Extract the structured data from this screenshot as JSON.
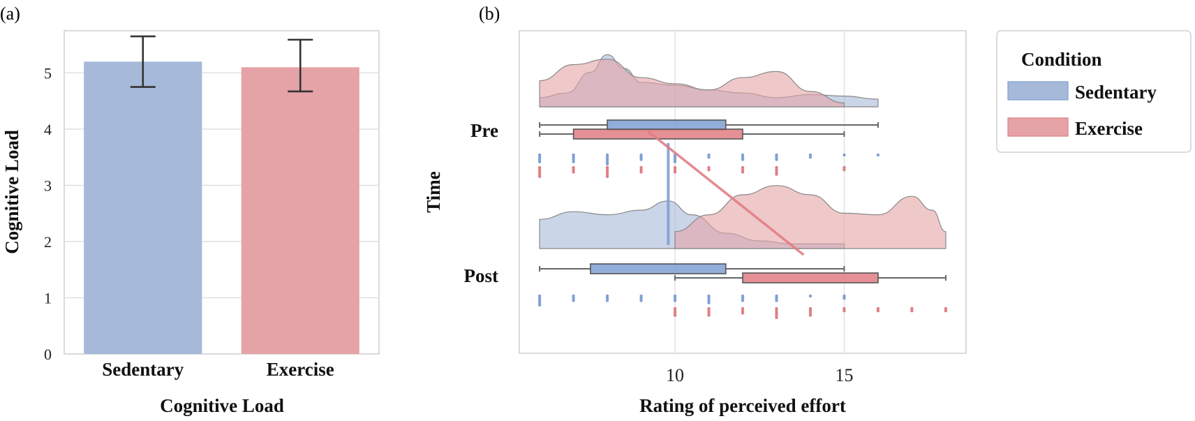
{
  "chart_data": [
    {
      "panel": "(a)",
      "type": "bar",
      "categories": [
        "Sedentary",
        "Exercise"
      ],
      "values": [
        5.2,
        5.1
      ],
      "error": [
        [
          4.75,
          5.65
        ],
        [
          4.67,
          5.59
        ]
      ],
      "colors": [
        "#a6b9d9",
        "#e5a3a7"
      ],
      "title": "",
      "xlabel": "Cognitive Load",
      "ylabel": "Cognitive Load",
      "ylim": [
        0,
        5.75
      ],
      "yticks": [
        0,
        1,
        2,
        3,
        4,
        5
      ],
      "grid": true
    },
    {
      "panel": "(b)",
      "type": "raincloud",
      "categories": [
        "Pre",
        "Post"
      ],
      "xlabel": "Rating of perceived effort",
      "ylabel": "Time",
      "xlim": [
        5.4,
        18.6
      ],
      "xticks": [
        10,
        15
      ],
      "grid": true,
      "legend": {
        "title": "Condition",
        "position": "outside-right"
      },
      "series": [
        {
          "name": "Sedentary",
          "color": "#a6b9d9",
          "edge": "#7f9fd3",
          "boxes": [
            {
              "time": "Pre",
              "whisker_low": 6,
              "q1": 8,
              "median": 9.8,
              "q3": 11.5,
              "whisker_high": 16
            },
            {
              "time": "Post",
              "whisker_low": 6,
              "q1": 7.5,
              "median": 9.8,
              "q3": 11.5,
              "whisker_high": 15
            }
          ],
          "mean_line": [
            9.8,
            9.8
          ],
          "density": [
            {
              "time": "Pre",
              "range": [
                6,
                16
              ],
              "points": [
                [
                  6,
                  0.12
                ],
                [
                  6.8,
                  0.18
                ],
                [
                  7.5,
                  0.45
                ],
                [
                  8,
                  0.68
                ],
                [
                  8.5,
                  0.5
                ],
                [
                  9,
                  0.32
                ],
                [
                  10,
                  0.28
                ],
                [
                  11,
                  0.22
                ],
                [
                  12,
                  0.18
                ],
                [
                  13,
                  0.12
                ],
                [
                  14,
                  0.16
                ],
                [
                  15,
                  0.14
                ],
                [
                  16,
                  0.1
                ]
              ]
            },
            {
              "time": "Post",
              "range": [
                6,
                15
              ],
              "points": [
                [
                  6,
                  0.38
                ],
                [
                  7,
                  0.48
                ],
                [
                  8,
                  0.44
                ],
                [
                  9,
                  0.5
                ],
                [
                  9.8,
                  0.62
                ],
                [
                  10.5,
                  0.44
                ],
                [
                  11.5,
                  0.2
                ],
                [
                  12.5,
                  0.1
                ],
                [
                  13.5,
                  0.06
                ],
                [
                  15,
                  0.06
                ]
              ]
            }
          ],
          "points_pre": [
            6,
            6,
            6,
            6,
            7,
            7,
            7,
            7,
            8,
            8,
            8,
            8,
            8,
            9,
            9,
            9,
            10,
            10,
            10,
            10,
            11,
            11,
            12,
            12,
            12,
            13,
            13,
            13,
            14,
            14,
            15,
            16
          ],
          "points_post": [
            6,
            6,
            6,
            6,
            6,
            7,
            7,
            7,
            8,
            8,
            8,
            9,
            9,
            9,
            10,
            10,
            10,
            11,
            11,
            11,
            11,
            12,
            12,
            12,
            13,
            13,
            13,
            14,
            15,
            15
          ]
        },
        {
          "name": "Exercise",
          "color": "#e5a3a7",
          "edge": "#e17d83",
          "boxes": [
            {
              "time": "Pre",
              "whisker_low": 6,
              "q1": 7,
              "median": 9,
              "q3": 12,
              "whisker_high": 15
            },
            {
              "time": "Post",
              "whisker_low": 10,
              "q1": 12,
              "median": 13.8,
              "q3": 16,
              "whisker_high": 18
            }
          ],
          "mean_line": [
            9.2,
            13.8
          ],
          "density": [
            {
              "time": "Pre",
              "range": [
                6,
                15
              ],
              "points": [
                [
                  6,
                  0.34
                ],
                [
                  7,
                  0.55
                ],
                [
                  8,
                  0.62
                ],
                [
                  9,
                  0.38
                ],
                [
                  10,
                  0.3
                ],
                [
                  11,
                  0.22
                ],
                [
                  12,
                  0.38
                ],
                [
                  13,
                  0.46
                ],
                [
                  14,
                  0.2
                ],
                [
                  15,
                  0.05
                ]
              ]
            },
            {
              "time": "Post",
              "range": [
                10,
                18
              ],
              "points": [
                [
                  10,
                  0.22
                ],
                [
                  11,
                  0.44
                ],
                [
                  12,
                  0.7
                ],
                [
                  13,
                  0.82
                ],
                [
                  14,
                  0.7
                ],
                [
                  15,
                  0.46
                ],
                [
                  16,
                  0.44
                ],
                [
                  17,
                  0.68
                ],
                [
                  17.6,
                  0.5
                ],
                [
                  18,
                  0.22
                ]
              ]
            }
          ],
          "points_pre": [
            6,
            6,
            6,
            6,
            6,
            7,
            7,
            7,
            8,
            8,
            8,
            8,
            8,
            9,
            9,
            9,
            10,
            10,
            10,
            11,
            11,
            12,
            12,
            12,
            13,
            13,
            13,
            13,
            15,
            15
          ],
          "points_post": [
            10,
            10,
            10,
            10,
            11,
            11,
            11,
            11,
            12,
            12,
            12,
            13,
            13,
            13,
            13,
            13,
            14,
            14,
            14,
            14,
            15,
            15,
            16,
            16,
            17,
            17,
            18,
            18
          ]
        }
      ]
    }
  ]
}
